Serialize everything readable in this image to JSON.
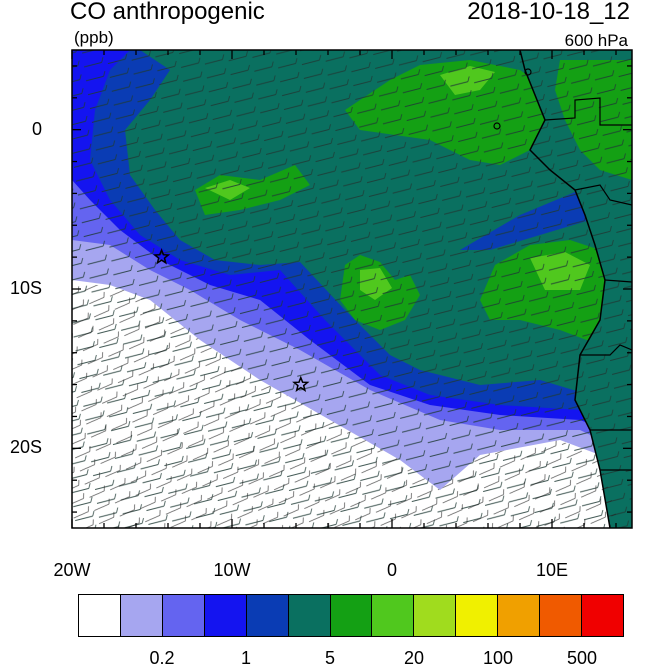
{
  "title": {
    "left": "CO anthropogenic",
    "right": "2018-10-18_12"
  },
  "subtitle": {
    "units": "(ppb)",
    "level": "600 hPa"
  },
  "axes": {
    "y_ticks": [
      {
        "label": "0",
        "lat": 0
      },
      {
        "label": "10S",
        "lat": -10
      },
      {
        "label": "20S",
        "lat": -20
      }
    ],
    "x_ticks": [
      {
        "label": "20W",
        "lon": -20
      },
      {
        "label": "10W",
        "lon": -10
      },
      {
        "label": "0",
        "lon": 0
      },
      {
        "label": "10E",
        "lon": 10
      }
    ],
    "lon_range": [
      -20,
      15
    ],
    "lat_range": [
      -25,
      5
    ]
  },
  "colorbar": {
    "colors": [
      "#ffffff",
      "#a6a6f0",
      "#6464f0",
      "#1414f0",
      "#0a3cb4",
      "#0a7060",
      "#14a014",
      "#50c81e",
      "#a0dc1e",
      "#f0f000",
      "#f0a000",
      "#f05a00",
      "#f00000"
    ],
    "labels": [
      {
        "text": "0.2",
        "boundary": 2
      },
      {
        "text": "1",
        "boundary": 4
      },
      {
        "text": "5",
        "boundary": 6
      },
      {
        "text": "20",
        "boundary": 8
      },
      {
        "text": "100",
        "boundary": 10
      },
      {
        "text": "500",
        "boundary": 12
      }
    ]
  },
  "markers": [
    {
      "name": "star",
      "lon": -14.4,
      "lat": -8.0
    },
    {
      "name": "star",
      "lon": -5.7,
      "lat": -16.0
    }
  ]
}
